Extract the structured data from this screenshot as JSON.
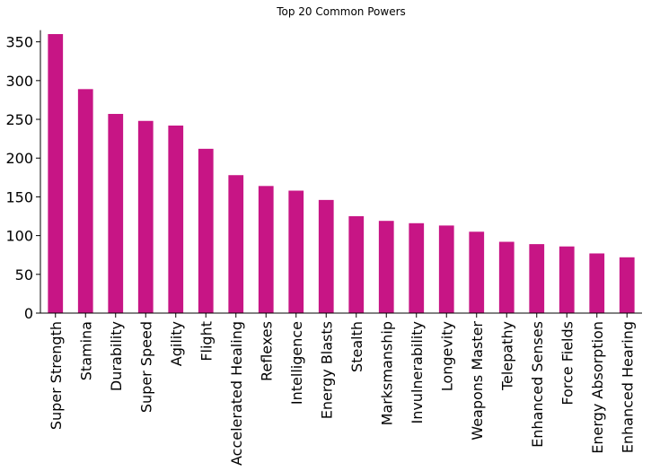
{
  "chart_data": {
    "type": "bar",
    "title": "Top 20 Common Powers",
    "xlabel": "",
    "ylabel": "",
    "ylim": [
      0,
      365
    ],
    "yticks": [
      0,
      50,
      100,
      150,
      200,
      250,
      300,
      350
    ],
    "grid": false,
    "bar_color": "#C71585",
    "categories": [
      "Super Strength",
      "Stamina",
      "Durability",
      "Super Speed",
      "Agility",
      "Flight",
      "Accelerated Healing",
      "Reflexes",
      "Intelligence",
      "Energy Blasts",
      "Stealth",
      "Marksmanship",
      "Invulnerability",
      "Longevity",
      "Weapons Master",
      "Telepathy",
      "Enhanced Senses",
      "Force Fields",
      "Energy Absorption",
      "Enhanced Hearing"
    ],
    "values": [
      360,
      289,
      257,
      248,
      242,
      212,
      178,
      164,
      158,
      146,
      125,
      119,
      116,
      113,
      105,
      92,
      89,
      86,
      77,
      72
    ]
  }
}
